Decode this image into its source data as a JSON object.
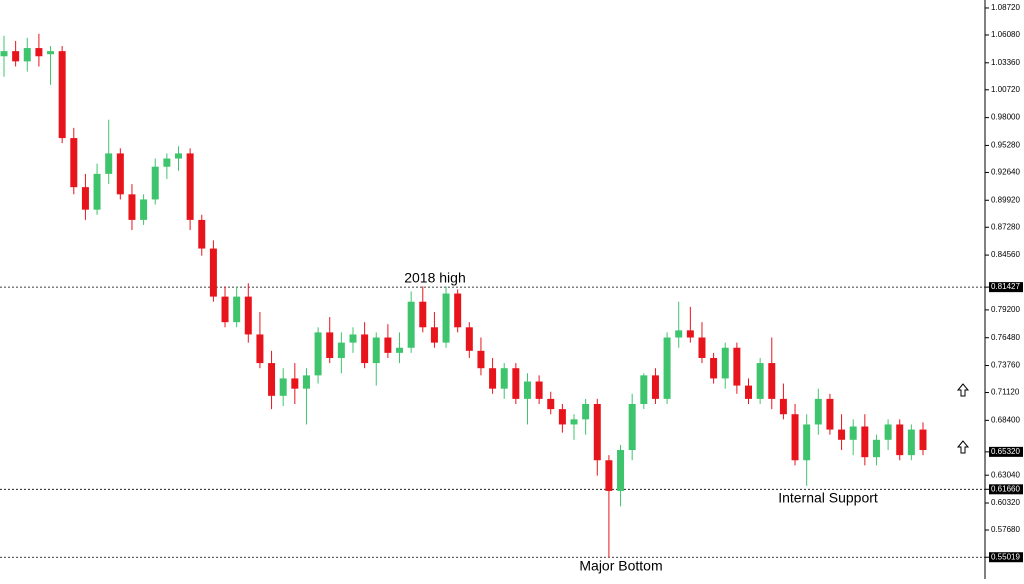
{
  "chart_data": {
    "type": "candlestick",
    "up_color": "#3ec46d",
    "down_color": "#e8141b",
    "ylim": [
      0.5289,
      1.095
    ],
    "yticks": [
      {
        "value": 1.0872,
        "label": "1.08720"
      },
      {
        "value": 1.0608,
        "label": "1.06080"
      },
      {
        "value": 1.0336,
        "label": "1.03360"
      },
      {
        "value": 1.0072,
        "label": "1.00720"
      },
      {
        "value": 0.98,
        "label": "0.98000"
      },
      {
        "value": 0.9528,
        "label": "0.95280"
      },
      {
        "value": 0.9264,
        "label": "0.92640"
      },
      {
        "value": 0.8992,
        "label": "0.89920"
      },
      {
        "value": 0.8728,
        "label": "0.87280"
      },
      {
        "value": 0.8456,
        "label": "0.84560"
      },
      {
        "value": 0.81427,
        "label": "0.81427",
        "boxed": true,
        "line": true
      },
      {
        "value": 0.792,
        "label": "0.79200"
      },
      {
        "value": 0.7648,
        "label": "0.76480"
      },
      {
        "value": 0.7376,
        "label": "0.73760"
      },
      {
        "value": 0.7112,
        "label": "0.71120"
      },
      {
        "value": 0.684,
        "label": "0.68400"
      },
      {
        "value": 0.6532,
        "label": "0.65320",
        "boxed": true
      },
      {
        "value": 0.6304,
        "label": "0.63040"
      },
      {
        "value": 0.6166,
        "label": "0.61660",
        "boxed": true,
        "line": true
      },
      {
        "value": 0.6032,
        "label": "0.60320"
      },
      {
        "value": 0.5768,
        "label": "0.57680"
      },
      {
        "value": 0.55019,
        "label": "0.55019",
        "boxed": true,
        "line": true
      }
    ],
    "annotations": [
      "2018 high",
      "Internal Support",
      "Major Bottom"
    ],
    "open": [
      1.04,
      1.045,
      1.035,
      1.048,
      1.042,
      1.045,
      0.96,
      0.912,
      0.89,
      0.925,
      0.945,
      0.905,
      0.88,
      0.9,
      0.932,
      0.94,
      0.945,
      0.88,
      0.852,
      0.805,
      0.78,
      0.805,
      0.768,
      0.74,
      0.708,
      0.725,
      0.715,
      0.728,
      0.77,
      0.745,
      0.76,
      0.768,
      0.74,
      0.765,
      0.75,
      0.755,
      0.8,
      0.775,
      0.76,
      0.808,
      0.775,
      0.752,
      0.735,
      0.715,
      0.735,
      0.705,
      0.722,
      0.705,
      0.695,
      0.68,
      0.685,
      0.7,
      0.645,
      0.615,
      0.655,
      0.7,
      0.728,
      0.705,
      0.765,
      0.772,
      0.765,
      0.745,
      0.725,
      0.755,
      0.718,
      0.705,
      0.74,
      0.705,
      0.69,
      0.645,
      0.68,
      0.705,
      0.675,
      0.665,
      0.678,
      0.648,
      0.665,
      0.68,
      0.65,
      0.675
    ],
    "high": [
      1.06,
      1.055,
      1.058,
      1.062,
      1.05,
      1.05,
      0.97,
      0.925,
      0.935,
      0.978,
      0.95,
      0.915,
      0.905,
      0.94,
      0.945,
      0.952,
      0.95,
      0.885,
      0.86,
      0.815,
      0.815,
      0.818,
      0.79,
      0.752,
      0.735,
      0.74,
      0.735,
      0.775,
      0.785,
      0.77,
      0.775,
      0.78,
      0.77,
      0.778,
      0.77,
      0.81,
      0.815,
      0.79,
      0.815,
      0.812,
      0.78,
      0.765,
      0.745,
      0.74,
      0.74,
      0.73,
      0.728,
      0.712,
      0.7,
      0.69,
      0.705,
      0.705,
      0.65,
      0.66,
      0.71,
      0.73,
      0.735,
      0.77,
      0.8,
      0.795,
      0.78,
      0.75,
      0.76,
      0.76,
      0.725,
      0.745,
      0.765,
      0.72,
      0.7,
      0.69,
      0.715,
      0.71,
      0.69,
      0.685,
      0.69,
      0.67,
      0.685,
      0.685,
      0.68,
      0.682
    ],
    "low": [
      1.02,
      1.03,
      1.025,
      1.03,
      1.012,
      0.955,
      0.905,
      0.88,
      0.885,
      0.915,
      0.9,
      0.87,
      0.875,
      0.895,
      0.92,
      0.928,
      0.87,
      0.845,
      0.8,
      0.775,
      0.775,
      0.76,
      0.735,
      0.695,
      0.698,
      0.7,
      0.68,
      0.72,
      0.74,
      0.73,
      0.75,
      0.735,
      0.718,
      0.745,
      0.74,
      0.75,
      0.77,
      0.755,
      0.755,
      0.77,
      0.745,
      0.728,
      0.71,
      0.705,
      0.7,
      0.68,
      0.7,
      0.69,
      0.672,
      0.665,
      0.67,
      0.63,
      0.55,
      0.6,
      0.645,
      0.695,
      0.7,
      0.7,
      0.755,
      0.76,
      0.74,
      0.72,
      0.715,
      0.71,
      0.7,
      0.7,
      0.695,
      0.685,
      0.64,
      0.62,
      0.67,
      0.67,
      0.655,
      0.65,
      0.64,
      0.64,
      0.655,
      0.645,
      0.645,
      0.65
    ],
    "close": [
      1.045,
      1.035,
      1.048,
      1.04,
      1.045,
      0.96,
      0.912,
      0.89,
      0.925,
      0.945,
      0.905,
      0.88,
      0.9,
      0.932,
      0.94,
      0.945,
      0.88,
      0.852,
      0.805,
      0.78,
      0.805,
      0.768,
      0.74,
      0.708,
      0.725,
      0.715,
      0.728,
      0.77,
      0.745,
      0.76,
      0.768,
      0.74,
      0.765,
      0.75,
      0.755,
      0.8,
      0.775,
      0.76,
      0.808,
      0.775,
      0.752,
      0.735,
      0.715,
      0.735,
      0.705,
      0.722,
      0.705,
      0.695,
      0.68,
      0.685,
      0.7,
      0.645,
      0.615,
      0.655,
      0.7,
      0.728,
      0.705,
      0.765,
      0.772,
      0.765,
      0.745,
      0.725,
      0.755,
      0.718,
      0.705,
      0.74,
      0.705,
      0.69,
      0.645,
      0.68,
      0.705,
      0.675,
      0.665,
      0.678,
      0.648,
      0.665,
      0.68,
      0.65,
      0.675,
      0.655
    ]
  }
}
